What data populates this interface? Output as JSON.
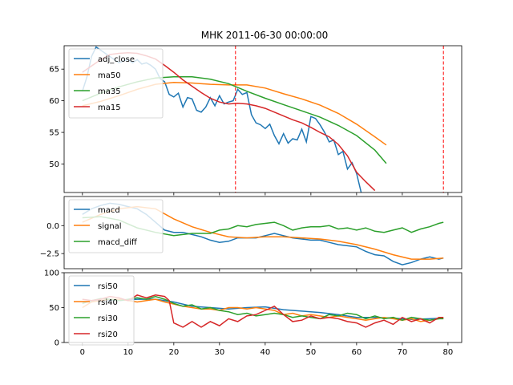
{
  "chart_data": [
    {
      "type": "line",
      "title": "MHK 2011-06-30 00:00:00",
      "ylim": [
        45.5,
        68.7
      ],
      "xlim": [
        -4,
        83
      ],
      "yticks": [
        50,
        55,
        60,
        65
      ],
      "grid": false,
      "legend": "top-left",
      "vlines": [
        33.5,
        79
      ],
      "series": [
        {
          "name": "adj_close",
          "color": "#1f77b4",
          "x": [
            0,
            1,
            2,
            3,
            4,
            5,
            6,
            7,
            8,
            9,
            10,
            11,
            12,
            13,
            14,
            15,
            16,
            17,
            18,
            19,
            20,
            21,
            22,
            23,
            24,
            25,
            26,
            27,
            28,
            29,
            30,
            31,
            32,
            33,
            34,
            35,
            36,
            37,
            38,
            39,
            40,
            41,
            42,
            43,
            44,
            45,
            46,
            47,
            48,
            49,
            50,
            51,
            52,
            53,
            54,
            55,
            56,
            57,
            58,
            59,
            60,
            61
          ],
          "values": [
            61.5,
            63.8,
            67,
            68.5,
            68,
            67.5,
            67,
            66.5,
            66,
            66.3,
            66.5,
            66,
            66.5,
            65.8,
            66,
            65.6,
            65,
            63.5,
            63,
            61,
            60.6,
            61.2,
            59,
            60.5,
            60.3,
            58.5,
            58.2,
            59,
            60.5,
            59.2,
            60.8,
            59.5,
            59.8,
            60,
            61.8,
            61,
            61.3,
            57.8,
            56.5,
            56.2,
            55.6,
            56.3,
            54.5,
            53.2,
            54.8,
            53.3,
            54,
            53.8,
            55.5,
            53.5,
            57.5,
            57.2,
            56.2,
            55,
            53.5,
            53.8,
            51.5,
            52,
            49.2,
            50.2,
            48.5,
            45.5
          ]
        },
        {
          "name": "ma50",
          "color": "#ff7f0e",
          "x": [
            0,
            4,
            8,
            12,
            16,
            20,
            24,
            28,
            32,
            36,
            40,
            44,
            48,
            52,
            56,
            60,
            64,
            66.5
          ],
          "values": [
            59.2,
            59.9,
            60.8,
            61.8,
            62.6,
            62.9,
            62.8,
            62.6,
            62.5,
            62.5,
            62,
            61.1,
            60.3,
            59.3,
            58,
            56.3,
            54.3,
            53
          ]
        },
        {
          "name": "ma35",
          "color": "#2ca02c",
          "x": [
            0,
            4,
            8,
            12,
            16,
            20,
            24,
            28,
            32,
            34,
            36,
            40,
            44,
            48,
            52,
            56,
            60,
            64,
            66.5
          ],
          "values": [
            60,
            61.2,
            62.2,
            63,
            63.6,
            63.8,
            63.8,
            63.4,
            62.7,
            62.1,
            61.5,
            60.4,
            59.4,
            58.4,
            57.4,
            56.1,
            54.5,
            52.2,
            50.1
          ]
        },
        {
          "name": "ma15",
          "color": "#d62728",
          "x": [
            0,
            2,
            4,
            6,
            8,
            10,
            12,
            14,
            16,
            18,
            20,
            22,
            24,
            26,
            28,
            30,
            32,
            34,
            36,
            38,
            40,
            42,
            44,
            46,
            48,
            50,
            52,
            54,
            56,
            58,
            60,
            62,
            64
          ],
          "values": [
            64.5,
            65.5,
            66.5,
            67.3,
            67.5,
            67.6,
            67.5,
            67.1,
            66.6,
            65.6,
            64.5,
            63.3,
            62.3,
            61.3,
            60.4,
            59.8,
            59.5,
            59.6,
            59.5,
            59.2,
            58.8,
            58.2,
            57.6,
            57,
            56.5,
            55.8,
            55,
            54.3,
            53.1,
            51.3,
            48.7,
            47.2,
            45.8
          ]
        }
      ]
    },
    {
      "type": "line",
      "ylim": [
        -3.85,
        2.6
      ],
      "xlim": [
        -4,
        83
      ],
      "yticks": [
        -2.5,
        0.0
      ],
      "ytick_labels": [
        "−2.5",
        "0.0"
      ],
      "grid": false,
      "legend": "top-left",
      "series": [
        {
          "name": "macd",
          "color": "#1f77b4",
          "x": [
            0,
            2,
            4,
            6,
            8,
            10,
            12,
            14,
            16,
            18,
            20,
            22,
            24,
            26,
            28,
            30,
            32,
            34,
            36,
            38,
            40,
            42,
            44,
            46,
            48,
            50,
            52,
            54,
            56,
            58,
            60,
            62,
            64,
            66,
            68,
            70,
            72,
            74,
            76,
            78,
            79
          ],
          "values": [
            1.0,
            1.5,
            1.8,
            2.0,
            1.9,
            1.7,
            1.5,
            1.0,
            0.3,
            -0.4,
            -0.6,
            -0.6,
            -0.8,
            -1.0,
            -1.3,
            -1.5,
            -1.4,
            -1.1,
            -1.1,
            -1.1,
            -0.9,
            -0.7,
            -0.9,
            -1.1,
            -1.2,
            -1.3,
            -1.3,
            -1.5,
            -1.7,
            -1.8,
            -1.9,
            -2.3,
            -2.6,
            -2.7,
            -3.2,
            -3.5,
            -3.3,
            -3.0,
            -2.8,
            -3.0,
            -2.9
          ]
        },
        {
          "name": "signal",
          "color": "#ff7f0e",
          "x": [
            0,
            4,
            8,
            12,
            16,
            20,
            24,
            28,
            32,
            36,
            40,
            44,
            48,
            52,
            56,
            60,
            64,
            68,
            72,
            76,
            79
          ],
          "values": [
            0.3,
            1.0,
            1.5,
            1.7,
            1.5,
            0.6,
            -0.1,
            -0.6,
            -1.0,
            -1.1,
            -1.0,
            -1.0,
            -1.1,
            -1.2,
            -1.4,
            -1.7,
            -2.1,
            -2.6,
            -3.0,
            -3.0,
            -2.9
          ]
        },
        {
          "name": "macd_diff",
          "color": "#2ca02c",
          "x": [
            0,
            4,
            8,
            12,
            16,
            20,
            24,
            28,
            30,
            32,
            34,
            36,
            38,
            40,
            42,
            44,
            46,
            48,
            50,
            52,
            54,
            56,
            58,
            60,
            62,
            64,
            66,
            68,
            70,
            72,
            74,
            76,
            78,
            79
          ],
          "values": [
            0.7,
            0.8,
            0.5,
            -0.2,
            -0.6,
            -0.9,
            -0.7,
            -0.7,
            -0.4,
            -0.3,
            0.0,
            -0.1,
            0.1,
            0.2,
            0.3,
            0.0,
            -0.4,
            -0.2,
            -0.1,
            -0.1,
            0.0,
            -0.3,
            -0.2,
            -0.4,
            -0.2,
            -0.5,
            -0.6,
            -0.4,
            -0.2,
            -0.6,
            -0.3,
            -0.1,
            0.2,
            0.3
          ]
        }
      ]
    },
    {
      "type": "line",
      "ylim": [
        0,
        100
      ],
      "xlim": [
        -4,
        83
      ],
      "yticks": [
        0,
        50,
        100
      ],
      "xticks": [
        0,
        10,
        20,
        30,
        40,
        50,
        60,
        70,
        80
      ],
      "grid": false,
      "legend": "top-left",
      "series": [
        {
          "name": "rsi50",
          "color": "#1f77b4",
          "x": [
            0,
            4,
            8,
            12,
            16,
            20,
            24,
            28,
            32,
            36,
            40,
            44,
            48,
            52,
            56,
            60,
            64,
            68,
            72,
            76,
            79
          ],
          "values": [
            58,
            60,
            60,
            62,
            62,
            58,
            52,
            50,
            48,
            50,
            51,
            47,
            45,
            43,
            40,
            36,
            36,
            35,
            33,
            34,
            35
          ]
        },
        {
          "name": "rsi40",
          "color": "#ff7f0e",
          "x": [
            0,
            2,
            4,
            6,
            8,
            10,
            12,
            14,
            16,
            18,
            20,
            22,
            24,
            26,
            28,
            30,
            32,
            34,
            36,
            38,
            40,
            42,
            44,
            46,
            48,
            50,
            52,
            54,
            56,
            58,
            60,
            62,
            64,
            66,
            68,
            70,
            72,
            74,
            76,
            78,
            79
          ],
          "values": [
            50,
            58,
            60,
            62,
            62,
            60,
            58,
            60,
            62,
            58,
            55,
            52,
            50,
            48,
            48,
            46,
            50,
            50,
            48,
            50,
            48,
            46,
            40,
            42,
            38,
            40,
            38,
            36,
            38,
            36,
            34,
            32,
            34,
            36,
            34,
            32,
            34,
            30,
            32,
            34,
            35
          ]
        },
        {
          "name": "rsi30",
          "color": "#2ca02c",
          "x": [
            0,
            2,
            4,
            6,
            8,
            10,
            12,
            14,
            16,
            18,
            20,
            22,
            24,
            26,
            28,
            30,
            32,
            34,
            36,
            38,
            40,
            42,
            44,
            46,
            48,
            50,
            52,
            54,
            56,
            58,
            60,
            62,
            64,
            66,
            68,
            70,
            72,
            74,
            76,
            78,
            79
          ],
          "values": [
            56,
            60,
            63,
            62,
            60,
            62,
            64,
            62,
            66,
            62,
            56,
            52,
            54,
            48,
            50,
            46,
            44,
            40,
            42,
            38,
            40,
            42,
            40,
            36,
            38,
            36,
            34,
            40,
            38,
            42,
            40,
            34,
            38,
            34,
            36,
            32,
            36,
            34,
            32,
            34,
            34
          ]
        },
        {
          "name": "rsi20",
          "color": "#d62728",
          "x": [
            0,
            2,
            4,
            6,
            8,
            10,
            12,
            14,
            16,
            18,
            19,
            20,
            22,
            24,
            26,
            28,
            30,
            32,
            34,
            36,
            38,
            40,
            42,
            44,
            46,
            48,
            50,
            52,
            54,
            56,
            58,
            60,
            62,
            64,
            66,
            68,
            70,
            72,
            74,
            76,
            78,
            79
          ],
          "values": [
            62,
            60,
            62,
            66,
            64,
            60,
            68,
            64,
            68,
            66,
            60,
            28,
            22,
            30,
            22,
            30,
            24,
            34,
            30,
            38,
            40,
            46,
            52,
            40,
            30,
            32,
            38,
            34,
            36,
            34,
            30,
            28,
            22,
            28,
            32,
            26,
            36,
            30,
            34,
            28,
            36,
            36
          ]
        }
      ]
    }
  ]
}
